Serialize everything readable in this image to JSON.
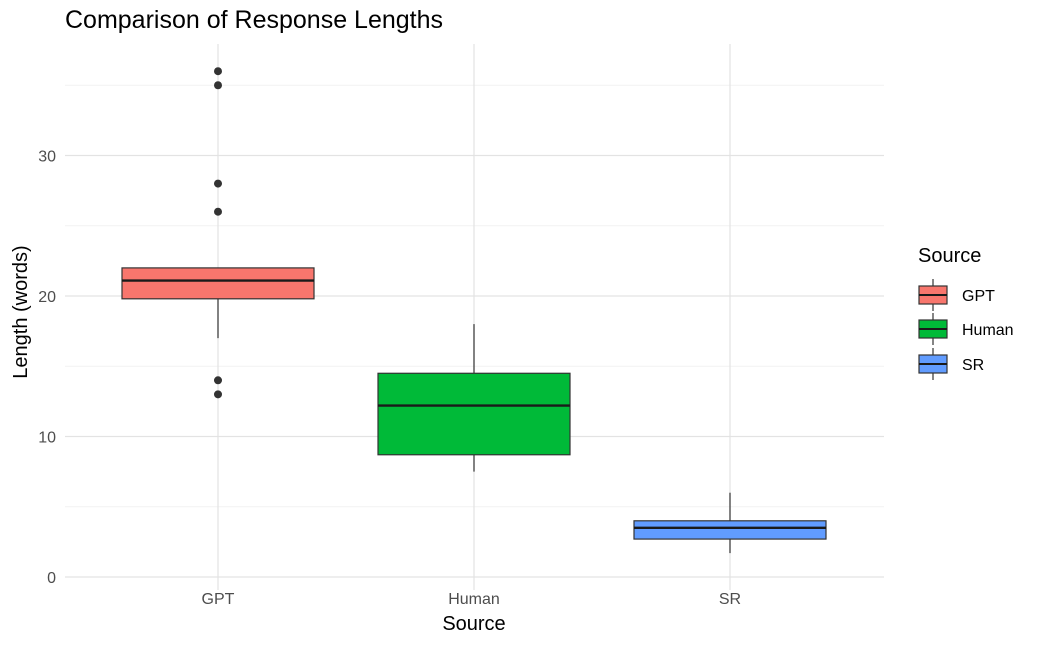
{
  "chart_data": {
    "type": "box",
    "title": "Comparison of Response Lengths",
    "xlabel": "Source",
    "ylabel": "Length (words)",
    "categories": [
      "GPT",
      "Human",
      "SR"
    ],
    "ylim": [
      -0.7,
      37.5
    ],
    "yticks": [
      0,
      10,
      20,
      30
    ],
    "grid": true,
    "legend": {
      "title": "Source",
      "position": "right",
      "entries": [
        "GPT",
        "Human",
        "SR"
      ]
    },
    "series": [
      {
        "name": "GPT",
        "color": "#F8766D",
        "whisker_low": 17,
        "q1": 19.8,
        "median": 21.1,
        "q3": 22,
        "whisker_high": 22,
        "outliers": [
          13,
          14,
          26,
          28,
          35,
          36
        ]
      },
      {
        "name": "Human",
        "color": "#00BA38",
        "whisker_low": 7.5,
        "q1": 8.7,
        "median": 12.2,
        "q3": 14.5,
        "whisker_high": 18,
        "outliers": []
      },
      {
        "name": "SR",
        "color": "#619CFF",
        "whisker_low": 1.7,
        "q1": 2.7,
        "median": 3.5,
        "q3": 4,
        "whisker_high": 6,
        "outliers": []
      }
    ]
  }
}
